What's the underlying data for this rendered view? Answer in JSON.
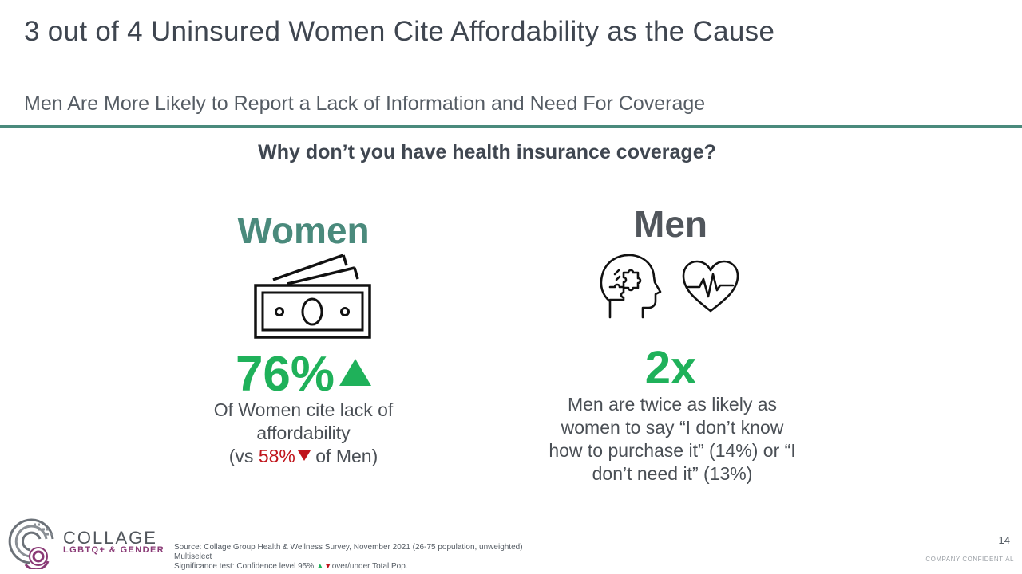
{
  "slide": {
    "title": "3 out of 4 Uninsured  Women Cite Affordability as the Cause",
    "subtitle": "Men Are More Likely to Report a Lack of Information and Need For Coverage",
    "question": "Why don’t you have health insurance coverage?"
  },
  "women": {
    "heading": "Women",
    "icon": "money-icon",
    "stat": "76%",
    "desc_line1": "Of Women cite lack of",
    "desc_line2": "affordability",
    "compare_prefix": "(vs ",
    "compare_value": "58%",
    "compare_suffix": " of Men)"
  },
  "men": {
    "heading": "Men",
    "icons": [
      "brain-puzzle-icon",
      "heart-rate-icon"
    ],
    "stat": "2x",
    "desc_line1": "Men are twice as likely as",
    "desc_line2": "women to say “I don’t know",
    "desc_line3": "how to purchase it”  (14%) or “I",
    "desc_line4": "don’t need it” (13%)"
  },
  "footer": {
    "logo_name": "COLLAGE",
    "logo_tag": "LGBTQ+ & GENDER",
    "source": "Source: Collage Group Health & Wellness Survey, November 2021 (26-75 population, unweighted)",
    "multiselect": "Multiselect",
    "sig_prefix": "Significance test: Confidence level 95%.",
    "sig_suffix": "over/under Total Pop.",
    "page_number": "14",
    "confidential": "COMPANY  CONFIDENTIAL"
  },
  "colors": {
    "teal": "#4a8a7c",
    "green": "#1fb15a",
    "red": "#c0141b",
    "dark_text": "#3f4650",
    "logo_purple": "#8a3a76"
  }
}
